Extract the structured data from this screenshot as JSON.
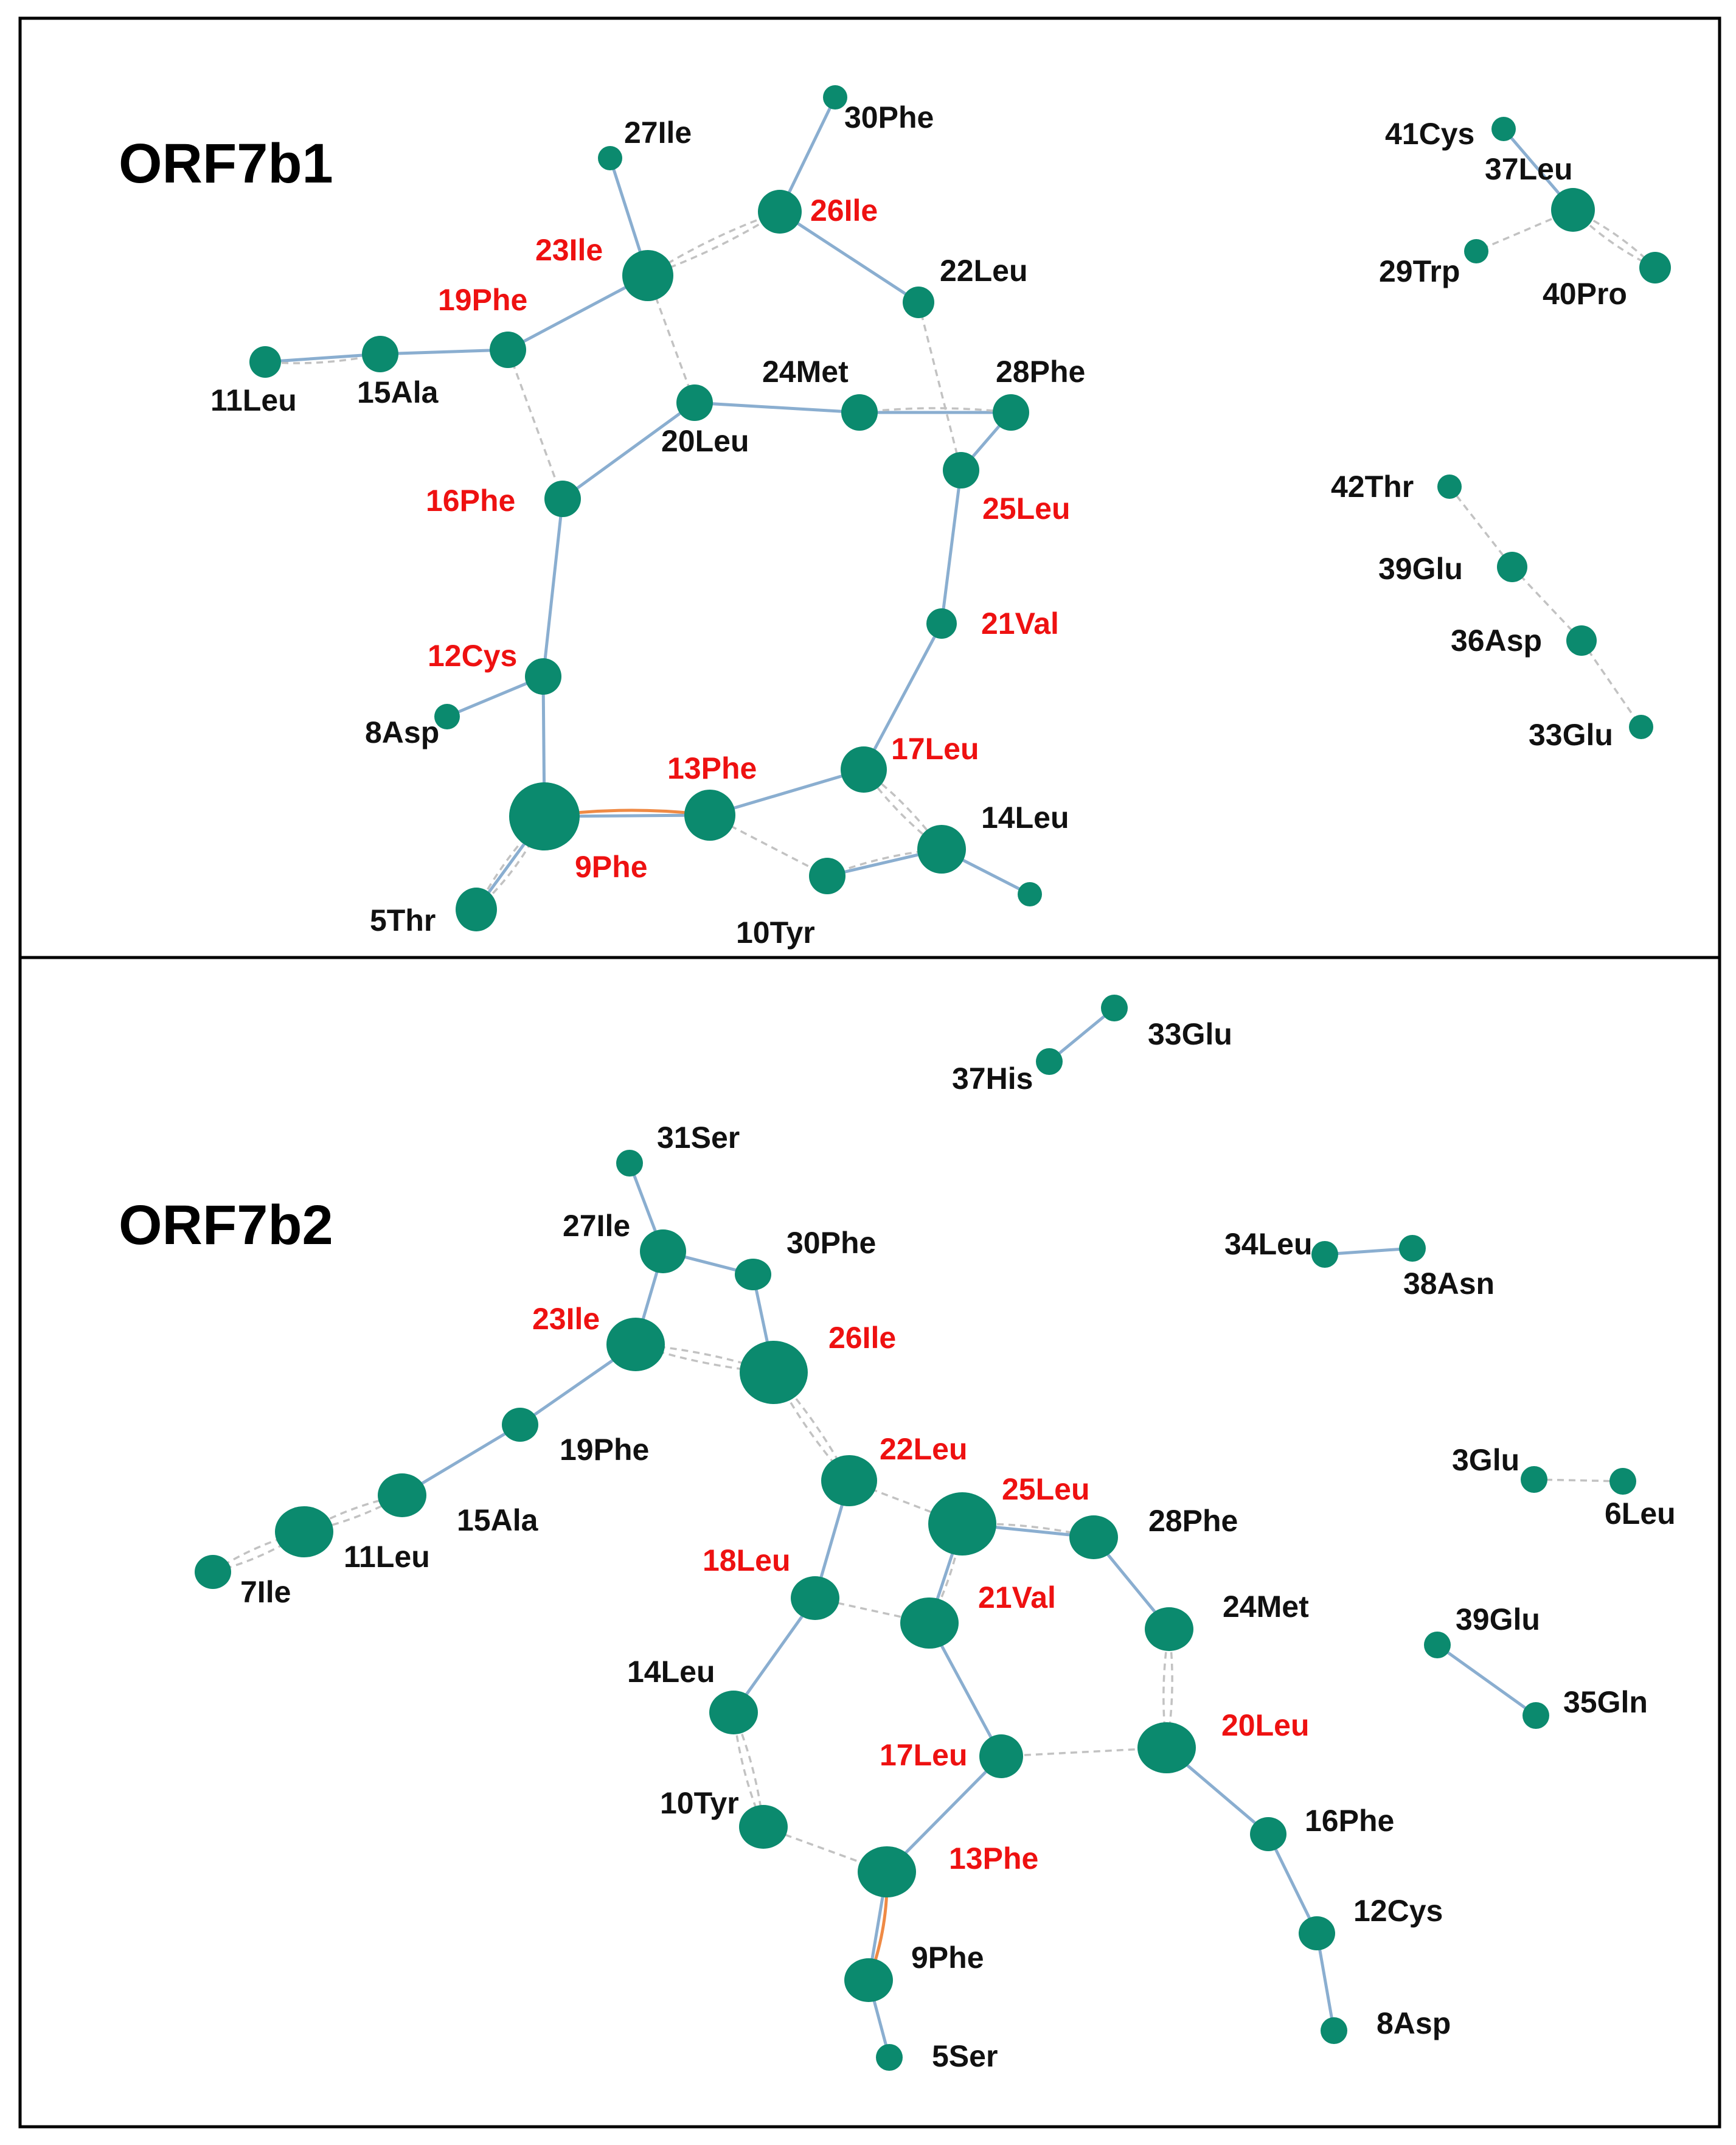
{
  "colors": {
    "node": "#0b8a6e",
    "edge_solid": "#8aaed0",
    "edge_dashed": "#c2c2c2",
    "edge_highlight": "#ef8a45",
    "label_highlight": "#ee1111",
    "label_normal": "#111111"
  },
  "panels": [
    {
      "id": "orf7b1",
      "title": "ORF7b1",
      "nodes": [
        {
          "id": "5Thr",
          "label": "5Thr",
          "highlight": false
        },
        {
          "id": "8Asp",
          "label": "8Asp",
          "highlight": false
        },
        {
          "id": "9Phe",
          "label": "9Phe",
          "highlight": true
        },
        {
          "id": "10Tyr",
          "label": "10Tyr",
          "highlight": false
        },
        {
          "id": "11Leu",
          "label": "11Leu",
          "highlight": false
        },
        {
          "id": "12Cys",
          "label": "12Cys",
          "highlight": true
        },
        {
          "id": "13Phe",
          "label": "13Phe",
          "highlight": true
        },
        {
          "id": "14Leu",
          "label": "14Leu",
          "highlight": false
        },
        {
          "id": "n14b",
          "label": "",
          "highlight": false
        },
        {
          "id": "15Ala",
          "label": "15Ala",
          "highlight": false
        },
        {
          "id": "16Phe",
          "label": "16Phe",
          "highlight": true
        },
        {
          "id": "17Leu",
          "label": "17Leu",
          "highlight": true
        },
        {
          "id": "19Phe",
          "label": "19Phe",
          "highlight": true
        },
        {
          "id": "20Leu",
          "label": "20Leu",
          "highlight": false
        },
        {
          "id": "21Val",
          "label": "21Val",
          "highlight": true
        },
        {
          "id": "22Leu",
          "label": "22Leu",
          "highlight": false
        },
        {
          "id": "23Ile",
          "label": "23Ile",
          "highlight": true
        },
        {
          "id": "24Met",
          "label": "24Met",
          "highlight": false
        },
        {
          "id": "25Leu",
          "label": "25Leu",
          "highlight": true
        },
        {
          "id": "26Ile",
          "label": "26Ile",
          "highlight": true
        },
        {
          "id": "27Ile",
          "label": "27Ile",
          "highlight": false
        },
        {
          "id": "28Phe",
          "label": "28Phe",
          "highlight": false
        },
        {
          "id": "30Phe",
          "label": "30Phe",
          "highlight": false
        },
        {
          "id": "29Trp",
          "label": "29Trp",
          "highlight": false
        },
        {
          "id": "37Leu",
          "label": "37Leu",
          "highlight": false
        },
        {
          "id": "40Pro",
          "label": "40Pro",
          "highlight": false
        },
        {
          "id": "41Cys",
          "label": "41Cys",
          "highlight": false
        },
        {
          "id": "42Thr",
          "label": "42Thr",
          "highlight": false
        },
        {
          "id": "39Glu",
          "label": "39Glu",
          "highlight": false
        },
        {
          "id": "36Asp",
          "label": "36Asp",
          "highlight": false
        },
        {
          "id": "33Glu",
          "label": "33Glu",
          "highlight": false
        }
      ],
      "edges": [
        {
          "from": "5Thr",
          "to": "9Phe",
          "type": "solid"
        },
        {
          "from": "5Thr",
          "to": "9Phe",
          "type": "dashed"
        },
        {
          "from": "5Thr",
          "to": "9Phe",
          "type": "dashed"
        },
        {
          "from": "9Phe",
          "to": "13Phe",
          "type": "highlight"
        },
        {
          "from": "9Phe",
          "to": "13Phe",
          "type": "solid"
        },
        {
          "from": "9Phe",
          "to": "12Cys",
          "type": "solid"
        },
        {
          "from": "12Cys",
          "to": "8Asp",
          "type": "solid"
        },
        {
          "from": "12Cys",
          "to": "16Phe",
          "type": "solid"
        },
        {
          "from": "16Phe",
          "to": "20Leu",
          "type": "solid"
        },
        {
          "from": "16Phe",
          "to": "19Phe",
          "type": "dashed"
        },
        {
          "from": "19Phe",
          "to": "15Ala",
          "type": "solid"
        },
        {
          "from": "15Ala",
          "to": "11Leu",
          "type": "solid"
        },
        {
          "from": "15Ala",
          "to": "11Leu",
          "type": "dashed"
        },
        {
          "from": "19Phe",
          "to": "23Ile",
          "type": "solid"
        },
        {
          "from": "23Ile",
          "to": "27Ile",
          "type": "solid"
        },
        {
          "from": "23Ile",
          "to": "26Ile",
          "type": "dashed"
        },
        {
          "from": "23Ile",
          "to": "26Ile",
          "type": "dashed"
        },
        {
          "from": "23Ile",
          "to": "20Leu",
          "type": "dashed"
        },
        {
          "from": "26Ile",
          "to": "30Phe",
          "type": "solid"
        },
        {
          "from": "26Ile",
          "to": "22Leu",
          "type": "solid"
        },
        {
          "from": "22Leu",
          "to": "25Leu",
          "type": "dashed"
        },
        {
          "from": "20Leu",
          "to": "24Met",
          "type": "solid"
        },
        {
          "from": "24Met",
          "to": "28Phe",
          "type": "solid"
        },
        {
          "from": "24Met",
          "to": "28Phe",
          "type": "dashed"
        },
        {
          "from": "28Phe",
          "to": "25Leu",
          "type": "solid"
        },
        {
          "from": "25Leu",
          "to": "21Val",
          "type": "solid"
        },
        {
          "from": "21Val",
          "to": "17Leu",
          "type": "solid"
        },
        {
          "from": "17Leu",
          "to": "13Phe",
          "type": "solid"
        },
        {
          "from": "17Leu",
          "to": "14Leu",
          "type": "dashed"
        },
        {
          "from": "17Leu",
          "to": "14Leu",
          "type": "dashed"
        },
        {
          "from": "13Phe",
          "to": "10Tyr",
          "type": "dashed"
        },
        {
          "from": "10Tyr",
          "to": "14Leu",
          "type": "solid"
        },
        {
          "from": "10Tyr",
          "to": "14Leu",
          "type": "dashed"
        },
        {
          "from": "14Leu",
          "to": "n14b",
          "type": "solid"
        },
        {
          "from": "41Cys",
          "to": "37Leu",
          "type": "solid"
        },
        {
          "from": "37Leu",
          "to": "29Trp",
          "type": "dashed"
        },
        {
          "from": "37Leu",
          "to": "40Pro",
          "type": "dashed"
        },
        {
          "from": "37Leu",
          "to": "40Pro",
          "type": "dashed"
        },
        {
          "from": "42Thr",
          "to": "39Glu",
          "type": "dashed"
        },
        {
          "from": "39Glu",
          "to": "36Asp",
          "type": "dashed"
        },
        {
          "from": "36Asp",
          "to": "33Glu",
          "type": "dashed"
        }
      ]
    },
    {
      "id": "orf7b2",
      "title": "ORF7b2",
      "nodes": [
        {
          "id": "37His",
          "label": "37His",
          "highlight": false
        },
        {
          "id": "33Glu",
          "label": "33Glu",
          "highlight": false
        },
        {
          "id": "31Ser",
          "label": "31Ser",
          "highlight": false
        },
        {
          "id": "27Ile",
          "label": "27Ile",
          "highlight": false
        },
        {
          "id": "30Phe",
          "label": "30Phe",
          "highlight": false
        },
        {
          "id": "23Ile",
          "label": "23Ile",
          "highlight": true
        },
        {
          "id": "26Ile",
          "label": "26Ile",
          "highlight": true
        },
        {
          "id": "19Phe",
          "label": "19Phe",
          "highlight": false
        },
        {
          "id": "15Ala",
          "label": "15Ala",
          "highlight": false
        },
        {
          "id": "11Leu",
          "label": "11Leu",
          "highlight": false
        },
        {
          "id": "7Ile",
          "label": "7Ile",
          "highlight": false
        },
        {
          "id": "22Leu",
          "label": "22Leu",
          "highlight": true
        },
        {
          "id": "25Leu",
          "label": "25Leu",
          "highlight": true
        },
        {
          "id": "28Phe",
          "label": "28Phe",
          "highlight": false
        },
        {
          "id": "18Leu",
          "label": "18Leu",
          "highlight": true
        },
        {
          "id": "21Val",
          "label": "21Val",
          "highlight": true
        },
        {
          "id": "24Met",
          "label": "24Met",
          "highlight": false
        },
        {
          "id": "14Leu",
          "label": "14Leu",
          "highlight": false
        },
        {
          "id": "17Leu",
          "label": "17Leu",
          "highlight": true
        },
        {
          "id": "20Leu",
          "label": "20Leu",
          "highlight": true
        },
        {
          "id": "10Tyr",
          "label": "10Tyr",
          "highlight": false
        },
        {
          "id": "13Phe",
          "label": "13Phe",
          "highlight": true
        },
        {
          "id": "16Phe",
          "label": "16Phe",
          "highlight": false
        },
        {
          "id": "12Cys",
          "label": "12Cys",
          "highlight": false
        },
        {
          "id": "9Phe",
          "label": "9Phe",
          "highlight": false
        },
        {
          "id": "8Asp",
          "label": "8Asp",
          "highlight": false
        },
        {
          "id": "5Ser",
          "label": "5Ser",
          "highlight": false
        },
        {
          "id": "34Leu",
          "label": "34Leu",
          "highlight": false
        },
        {
          "id": "38Asn",
          "label": "38Asn",
          "highlight": false
        },
        {
          "id": "3Glu",
          "label": "3Glu",
          "highlight": false
        },
        {
          "id": "6Leu",
          "label": "6Leu",
          "highlight": false
        },
        {
          "id": "39Glu",
          "label": "39Glu",
          "highlight": false
        },
        {
          "id": "35Gln",
          "label": "35Gln",
          "highlight": false
        }
      ],
      "edges": [
        {
          "from": "37His",
          "to": "33Glu",
          "type": "solid"
        },
        {
          "from": "31Ser",
          "to": "27Ile",
          "type": "solid"
        },
        {
          "from": "27Ile",
          "to": "30Phe",
          "type": "solid"
        },
        {
          "from": "27Ile",
          "to": "23Ile",
          "type": "solid"
        },
        {
          "from": "30Phe",
          "to": "26Ile",
          "type": "solid"
        },
        {
          "from": "23Ile",
          "to": "26Ile",
          "type": "dashed"
        },
        {
          "from": "23Ile",
          "to": "26Ile",
          "type": "dashed"
        },
        {
          "from": "23Ile",
          "to": "19Phe",
          "type": "solid"
        },
        {
          "from": "19Phe",
          "to": "15Ala",
          "type": "solid"
        },
        {
          "from": "15Ala",
          "to": "11Leu",
          "type": "dashed"
        },
        {
          "from": "15Ala",
          "to": "11Leu",
          "type": "dashed"
        },
        {
          "from": "11Leu",
          "to": "7Ile",
          "type": "dashed"
        },
        {
          "from": "11Leu",
          "to": "7Ile",
          "type": "dashed"
        },
        {
          "from": "26Ile",
          "to": "22Leu",
          "type": "dashed"
        },
        {
          "from": "26Ile",
          "to": "22Leu",
          "type": "dashed"
        },
        {
          "from": "22Leu",
          "to": "25Leu",
          "type": "dashed"
        },
        {
          "from": "22Leu",
          "to": "18Leu",
          "type": "solid"
        },
        {
          "from": "25Leu",
          "to": "28Phe",
          "type": "solid"
        },
        {
          "from": "25Leu",
          "to": "28Phe",
          "type": "dashed"
        },
        {
          "from": "25Leu",
          "to": "21Val",
          "type": "solid"
        },
        {
          "from": "25Leu",
          "to": "21Val",
          "type": "dashed"
        },
        {
          "from": "28Phe",
          "to": "24Met",
          "type": "solid"
        },
        {
          "from": "24Met",
          "to": "20Leu",
          "type": "dashed"
        },
        {
          "from": "24Met",
          "to": "20Leu",
          "type": "dashed"
        },
        {
          "from": "18Leu",
          "to": "21Val",
          "type": "dashed"
        },
        {
          "from": "18Leu",
          "to": "14Leu",
          "type": "solid"
        },
        {
          "from": "21Val",
          "to": "17Leu",
          "type": "solid"
        },
        {
          "from": "17Leu",
          "to": "20Leu",
          "type": "dashed"
        },
        {
          "from": "17Leu",
          "to": "13Phe",
          "type": "solid"
        },
        {
          "from": "14Leu",
          "to": "10Tyr",
          "type": "dashed"
        },
        {
          "from": "14Leu",
          "to": "10Tyr",
          "type": "dashed"
        },
        {
          "from": "10Tyr",
          "to": "13Phe",
          "type": "dashed"
        },
        {
          "from": "13Phe",
          "to": "9Phe",
          "type": "highlight"
        },
        {
          "from": "13Phe",
          "to": "9Phe",
          "type": "solid"
        },
        {
          "from": "9Phe",
          "to": "5Ser",
          "type": "solid"
        },
        {
          "from": "20Leu",
          "to": "16Phe",
          "type": "solid"
        },
        {
          "from": "16Phe",
          "to": "12Cys",
          "type": "solid"
        },
        {
          "from": "12Cys",
          "to": "8Asp",
          "type": "solid"
        },
        {
          "from": "34Leu",
          "to": "38Asn",
          "type": "solid"
        },
        {
          "from": "3Glu",
          "to": "6Leu",
          "type": "dashed"
        },
        {
          "from": "39Glu",
          "to": "35Gln",
          "type": "solid"
        }
      ]
    }
  ]
}
